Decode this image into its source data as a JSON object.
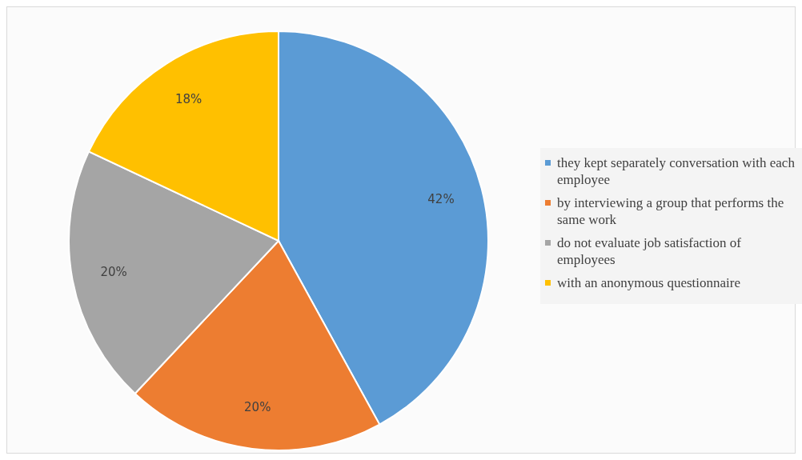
{
  "chart_data": {
    "type": "pie",
    "categories": [
      "they kept separately conversation with each employee",
      "by interviewing a group that performs the same work",
      "do not evaluate job satisfaction of employees",
      "with an anonymous questionnaire"
    ],
    "values": [
      42,
      20,
      20,
      18
    ],
    "colors": [
      "#5b9bd5",
      "#ed7d31",
      "#a5a5a5",
      "#ffc000"
    ],
    "value_labels": [
      "42%",
      "20%",
      "20%",
      "18%"
    ],
    "legend": "right"
  }
}
